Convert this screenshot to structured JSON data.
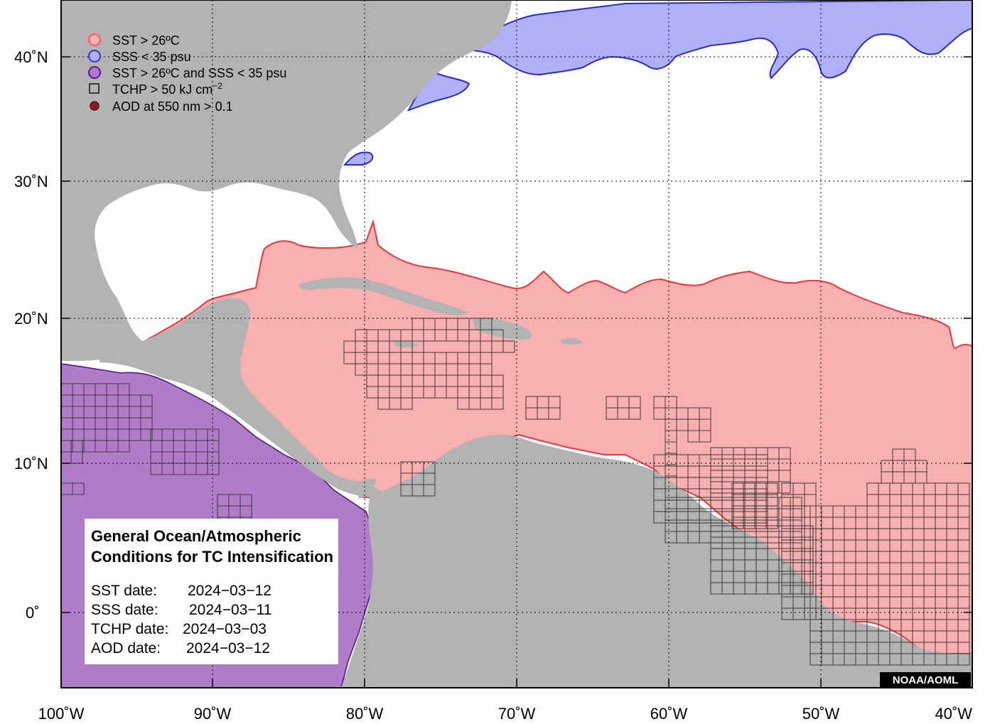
{
  "map": {
    "lon_ticks": [
      "100˚W",
      "90˚W",
      "80˚W",
      "70˚W",
      "60˚W",
      "50˚W",
      "40˚W"
    ],
    "lat_ticks": [
      "40˚N",
      "30˚N",
      "20˚N",
      "10˚N",
      "0˚"
    ],
    "colors": {
      "land": "#b3b3b3",
      "ocean": "#ffffff",
      "sst": "#f8b0b0",
      "sst_line": "#e8383a",
      "sss": "#b0b0f8",
      "sss_line": "#2a2ad0",
      "both": "#b07cc8",
      "both_line": "#4b0f86",
      "tchp_line": "#3a3a3a"
    }
  },
  "legend": {
    "items": [
      {
        "label": "SST > 26ºC",
        "icon": "sst-circle"
      },
      {
        "label": "SSS < 35 psu",
        "icon": "sss-circle"
      },
      {
        "label": "SST > 26ºC and SSS < 35 psu",
        "icon": "both-circle"
      },
      {
        "label": "TCHP > 50 kJ cm",
        "sup": "−2",
        "icon": "tchp-square"
      },
      {
        "label": "AOD at 550 nm > 0.1",
        "icon": "aod-dot"
      }
    ]
  },
  "info": {
    "title_line1": "General Ocean/Atmospheric",
    "title_line2": "Conditions for TC Intensification",
    "sst_label": "SST date:",
    "sst_date": "2024−03−12",
    "sss_label": "SSS date:",
    "sss_date": "2024−03−11",
    "tchp_label": "TCHP date:",
    "tchp_date": "2024−03−03",
    "aod_label": "AOD date:",
    "aod_date": "2024−03−12"
  },
  "credit": "NOAA/AOML"
}
